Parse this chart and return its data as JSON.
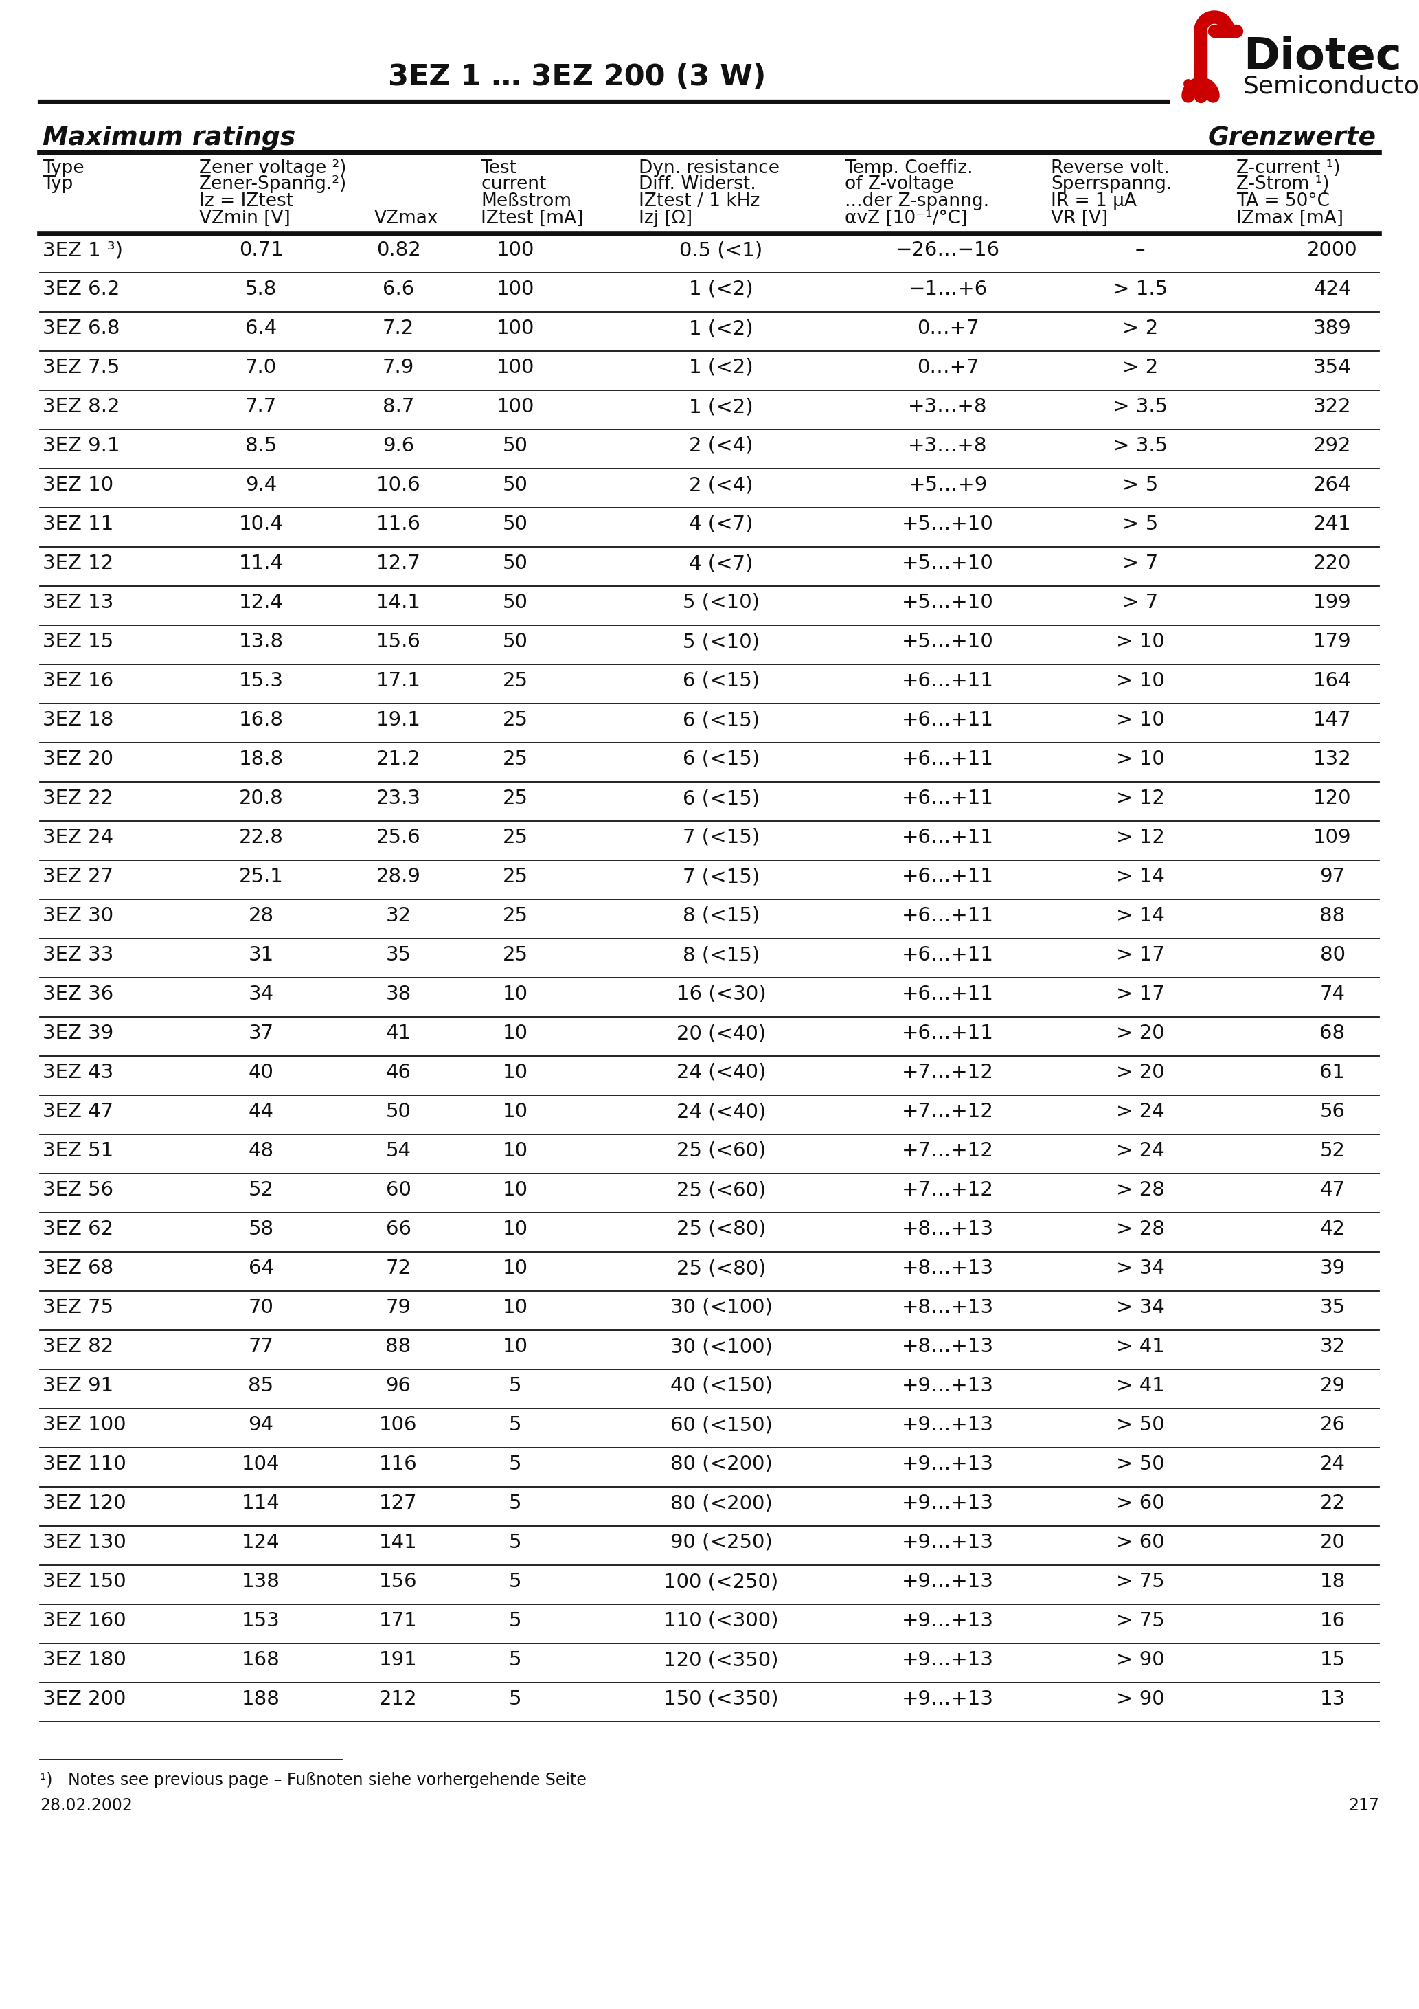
{
  "title": "3EZ 1 … 3EZ 200 (3 W)",
  "logo_text": "Diotec",
  "logo_sub": "Semiconductor",
  "section_left": "Maximum ratings",
  "section_right": "Grenzwerte",
  "col_h1": [
    "Type",
    "Zener voltage ²)",
    "Test",
    "Dyn. resistance",
    "Temp. Coeffiz.",
    "Reverse volt.",
    "Z-current ¹)"
  ],
  "col_h2": [
    "Typ",
    "Zener-Spanng.²)",
    "current",
    "Diff. Widerst.",
    "of Z-voltage",
    "Sperrspanng.",
    "Z-Strom ¹)"
  ],
  "col_h3": [
    "",
    "Iz = IZtest",
    "Meßstrom",
    "IZtest / 1 kHz",
    "...der Z-spanng.",
    "IR = 1 μA",
    "TA = 50°C"
  ],
  "col_h4_a": "VZmin [V]",
  "col_h4_b": "VZmax",
  "col_h4_c": "IZtest [mA]",
  "col_h4_d": "Izj [Ω]",
  "col_h4_e": "αvZ [10⁻¹/°C]",
  "col_h4_f": "VR [V]",
  "col_h4_g": "IZmax [mA]",
  "rows": [
    [
      "3EZ 1 ³)",
      "0.71",
      "0.82",
      "100",
      "0.5 (<1)",
      "−26…−16",
      "–",
      "2000"
    ],
    [
      "3EZ 6.2",
      "5.8",
      "6.6",
      "100",
      "1 (<2)",
      "−1…+6",
      "> 1.5",
      "424"
    ],
    [
      "3EZ 6.8",
      "6.4",
      "7.2",
      "100",
      "1 (<2)",
      "0…+7",
      "> 2",
      "389"
    ],
    [
      "3EZ 7.5",
      "7.0",
      "7.9",
      "100",
      "1 (<2)",
      "0…+7",
      "> 2",
      "354"
    ],
    [
      "3EZ 8.2",
      "7.7",
      "8.7",
      "100",
      "1 (<2)",
      "+3…+8",
      "> 3.5",
      "322"
    ],
    [
      "3EZ 9.1",
      "8.5",
      "9.6",
      "50",
      "2 (<4)",
      "+3…+8",
      "> 3.5",
      "292"
    ],
    [
      "3EZ 10",
      "9.4",
      "10.6",
      "50",
      "2 (<4)",
      "+5…+9",
      "> 5",
      "264"
    ],
    [
      "3EZ 11",
      "10.4",
      "11.6",
      "50",
      "4 (<7)",
      "+5…+10",
      "> 5",
      "241"
    ],
    [
      "3EZ 12",
      "11.4",
      "12.7",
      "50",
      "4 (<7)",
      "+5…+10",
      "> 7",
      "220"
    ],
    [
      "3EZ 13",
      "12.4",
      "14.1",
      "50",
      "5 (<10)",
      "+5…+10",
      "> 7",
      "199"
    ],
    [
      "3EZ 15",
      "13.8",
      "15.6",
      "50",
      "5 (<10)",
      "+5…+10",
      "> 10",
      "179"
    ],
    [
      "3EZ 16",
      "15.3",
      "17.1",
      "25",
      "6 (<15)",
      "+6…+11",
      "> 10",
      "164"
    ],
    [
      "3EZ 18",
      "16.8",
      "19.1",
      "25",
      "6 (<15)",
      "+6…+11",
      "> 10",
      "147"
    ],
    [
      "3EZ 20",
      "18.8",
      "21.2",
      "25",
      "6 (<15)",
      "+6…+11",
      "> 10",
      "132"
    ],
    [
      "3EZ 22",
      "20.8",
      "23.3",
      "25",
      "6 (<15)",
      "+6…+11",
      "> 12",
      "120"
    ],
    [
      "3EZ 24",
      "22.8",
      "25.6",
      "25",
      "7 (<15)",
      "+6…+11",
      "> 12",
      "109"
    ],
    [
      "3EZ 27",
      "25.1",
      "28.9",
      "25",
      "7 (<15)",
      "+6…+11",
      "> 14",
      "97"
    ],
    [
      "3EZ 30",
      "28",
      "32",
      "25",
      "8 (<15)",
      "+6…+11",
      "> 14",
      "88"
    ],
    [
      "3EZ 33",
      "31",
      "35",
      "25",
      "8 (<15)",
      "+6…+11",
      "> 17",
      "80"
    ],
    [
      "3EZ 36",
      "34",
      "38",
      "10",
      "16 (<30)",
      "+6…+11",
      "> 17",
      "74"
    ],
    [
      "3EZ 39",
      "37",
      "41",
      "10",
      "20 (<40)",
      "+6…+11",
      "> 20",
      "68"
    ],
    [
      "3EZ 43",
      "40",
      "46",
      "10",
      "24 (<40)",
      "+7…+12",
      "> 20",
      "61"
    ],
    [
      "3EZ 47",
      "44",
      "50",
      "10",
      "24 (<40)",
      "+7…+12",
      "> 24",
      "56"
    ],
    [
      "3EZ 51",
      "48",
      "54",
      "10",
      "25 (<60)",
      "+7…+12",
      "> 24",
      "52"
    ],
    [
      "3EZ 56",
      "52",
      "60",
      "10",
      "25 (<60)",
      "+7…+12",
      "> 28",
      "47"
    ],
    [
      "3EZ 62",
      "58",
      "66",
      "10",
      "25 (<80)",
      "+8…+13",
      "> 28",
      "42"
    ],
    [
      "3EZ 68",
      "64",
      "72",
      "10",
      "25 (<80)",
      "+8…+13",
      "> 34",
      "39"
    ],
    [
      "3EZ 75",
      "70",
      "79",
      "10",
      "30 (<100)",
      "+8…+13",
      "> 34",
      "35"
    ],
    [
      "3EZ 82",
      "77",
      "88",
      "10",
      "30 (<100)",
      "+8…+13",
      "> 41",
      "32"
    ],
    [
      "3EZ 91",
      "85",
      "96",
      "5",
      "40 (<150)",
      "+9…+13",
      "> 41",
      "29"
    ],
    [
      "3EZ 100",
      "94",
      "106",
      "5",
      "60 (<150)",
      "+9…+13",
      "> 50",
      "26"
    ],
    [
      "3EZ 110",
      "104",
      "116",
      "5",
      "80 (<200)",
      "+9…+13",
      "> 50",
      "24"
    ],
    [
      "3EZ 120",
      "114",
      "127",
      "5",
      "80 (<200)",
      "+9…+13",
      "> 60",
      "22"
    ],
    [
      "3EZ 130",
      "124",
      "141",
      "5",
      "90 (<250)",
      "+9…+13",
      "> 60",
      "20"
    ],
    [
      "3EZ 150",
      "138",
      "156",
      "5",
      "100 (<250)",
      "+9…+13",
      "> 75",
      "18"
    ],
    [
      "3EZ 160",
      "153",
      "171",
      "5",
      "110 (<300)",
      "+9…+13",
      "> 75",
      "16"
    ],
    [
      "3EZ 180",
      "168",
      "191",
      "5",
      "120 (<350)",
      "+9…+13",
      "> 90",
      "15"
    ],
    [
      "3EZ 200",
      "188",
      "212",
      "5",
      "150 (<350)",
      "+9…+13",
      "> 90",
      "13"
    ]
  ],
  "footnote": "¹)   Notes see previous page – Fußnoten siehe vorhergehende Seite",
  "date": "28.02.2002",
  "page": "217",
  "bg_color": "#ffffff",
  "text_color": "#000000",
  "logo_color": "#cc0000"
}
